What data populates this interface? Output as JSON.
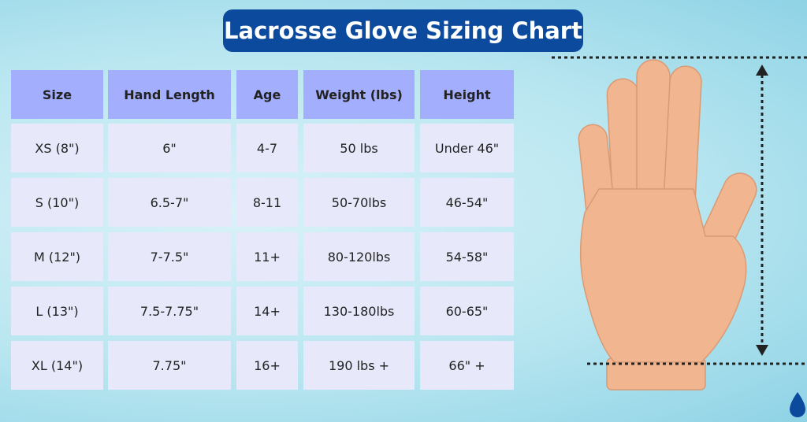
{
  "header": {
    "title": "Lacrosse Glove Sizing Chart"
  },
  "table": {
    "columns": [
      "Size",
      "Hand Length",
      "Age",
      "Weight (lbs)",
      "Height"
    ],
    "rows": [
      [
        "XS (8\")",
        "6\"",
        "4-7",
        "50 lbs",
        "Under 46\""
      ],
      [
        "S (10\")",
        "6.5-7\"",
        "8-11",
        "50-70lbs",
        "46-54\""
      ],
      [
        "M (12\")",
        "7-7.5\"",
        "11+",
        "80-120lbs",
        "54-58\""
      ],
      [
        "L (13\")",
        "7.5-7.75\"",
        "14+",
        "130-180lbs",
        "60-65\""
      ],
      [
        "XL (14\")",
        "7.75\"",
        "16+",
        "190 lbs +",
        "66\" +"
      ]
    ]
  }
}
